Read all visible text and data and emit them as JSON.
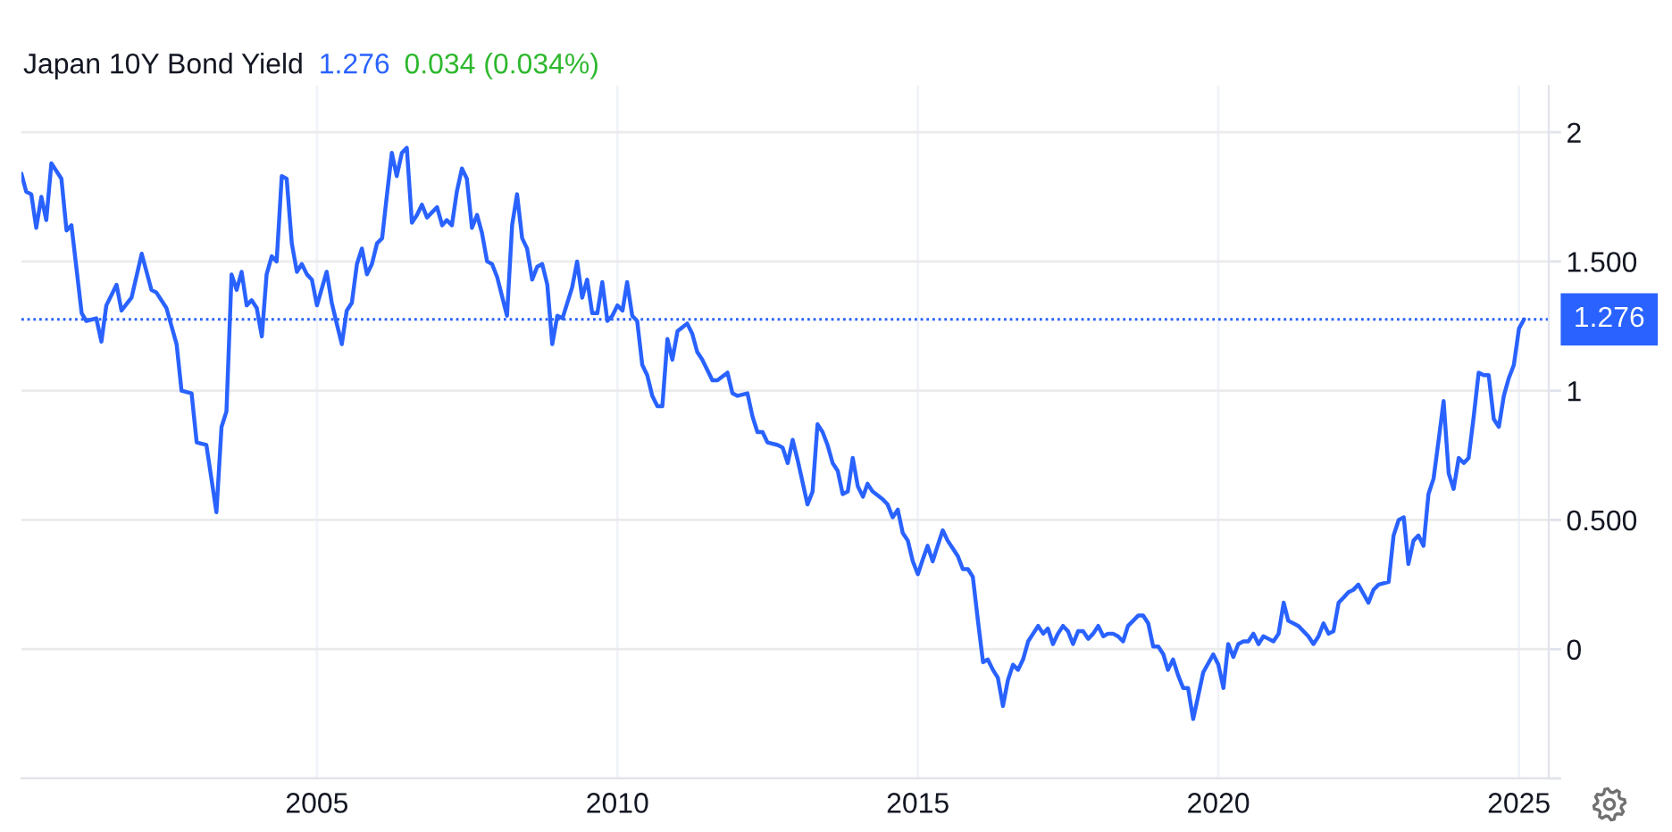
{
  "chart_data": {
    "type": "line",
    "title": "Japan 10Y Bond Yield",
    "annotations": [
      "1.276",
      "0.034 (0.034%)"
    ],
    "x": [
      "2000-02",
      "2000-03",
      "2000-04",
      "2000-05",
      "2000-06",
      "2000-07",
      "2000-08",
      "2000-10",
      "2000-11",
      "2000-12",
      "2001-02",
      "2001-03",
      "2001-05",
      "2001-06",
      "2001-07",
      "2001-09",
      "2001-10",
      "2001-12",
      "2002-02",
      "2002-04",
      "2002-05",
      "2002-07",
      "2002-09",
      "2002-10",
      "2002-12",
      "2003-01",
      "2003-03",
      "2003-05",
      "2003-06",
      "2003-07",
      "2003-08",
      "2003-09",
      "2003-10",
      "2003-11",
      "2003-12",
      "2004-01",
      "2004-02",
      "2004-03",
      "2004-04",
      "2004-05",
      "2004-06",
      "2004-07",
      "2004-08",
      "2004-09",
      "2004-10",
      "2004-11",
      "2004-12",
      "2005-01",
      "2005-03",
      "2005-04",
      "2005-05",
      "2005-06",
      "2005-07",
      "2005-08",
      "2005-09",
      "2005-10",
      "2005-11",
      "2005-12",
      "2006-01",
      "2006-02",
      "2006-03",
      "2006-04",
      "2006-05",
      "2006-06",
      "2006-07",
      "2006-08",
      "2006-09",
      "2006-10",
      "2006-11",
      "2006-12",
      "2007-01",
      "2007-02",
      "2007-03",
      "2007-04",
      "2007-05",
      "2007-06",
      "2007-07",
      "2007-08",
      "2007-09",
      "2007-10",
      "2007-11",
      "2007-12",
      "2008-01",
      "2008-03",
      "2008-04",
      "2008-05",
      "2008-06",
      "2008-07",
      "2008-08",
      "2008-09",
      "2008-10",
      "2008-11",
      "2008-12",
      "2009-01",
      "2009-02",
      "2009-04",
      "2009-05",
      "2009-06",
      "2009-07",
      "2009-08",
      "2009-09",
      "2009-10",
      "2009-11",
      "2009-12",
      "2010-01",
      "2010-02",
      "2010-03",
      "2010-04",
      "2010-05",
      "2010-06",
      "2010-07",
      "2010-08",
      "2010-09",
      "2010-10",
      "2010-11",
      "2010-12",
      "2011-01",
      "2011-03",
      "2011-04",
      "2011-05",
      "2011-06",
      "2011-08",
      "2011-09",
      "2011-11",
      "2011-12",
      "2012-01",
      "2012-03",
      "2012-04",
      "2012-05",
      "2012-06",
      "2012-07",
      "2012-09",
      "2012-10",
      "2012-11",
      "2012-12",
      "2013-01",
      "2013-03",
      "2013-04",
      "2013-05",
      "2013-06",
      "2013-07",
      "2013-08",
      "2013-09",
      "2013-10",
      "2013-11",
      "2013-12",
      "2014-01",
      "2014-02",
      "2014-03",
      "2014-04",
      "2014-06",
      "2014-07",
      "2014-08",
      "2014-09",
      "2014-10",
      "2014-11",
      "2014-12",
      "2015-01",
      "2015-02",
      "2015-03",
      "2015-04",
      "2015-05",
      "2015-06",
      "2015-07",
      "2015-08",
      "2015-09",
      "2015-10",
      "2015-11",
      "2015-12",
      "2016-01",
      "2016-02",
      "2016-03",
      "2016-04",
      "2016-05",
      "2016-06",
      "2016-07",
      "2016-08",
      "2016-09",
      "2016-10",
      "2016-11",
      "2016-12",
      "2017-01",
      "2017-02",
      "2017-03",
      "2017-04",
      "2017-05",
      "2017-06",
      "2017-07",
      "2017-08",
      "2017-09",
      "2017-10",
      "2017-11",
      "2017-12",
      "2018-01",
      "2018-02",
      "2018-03",
      "2018-04",
      "2018-05",
      "2018-06",
      "2018-07",
      "2018-09",
      "2018-10",
      "2018-11",
      "2018-12",
      "2019-01",
      "2019-02",
      "2019-03",
      "2019-04",
      "2019-05",
      "2019-06",
      "2019-07",
      "2019-08",
      "2019-09",
      "2019-10",
      "2019-12",
      "2020-01",
      "2020-02",
      "2020-03",
      "2020-04",
      "2020-05",
      "2020-06",
      "2020-07",
      "2020-08",
      "2020-09",
      "2020-10",
      "2020-11",
      "2020-12",
      "2021-01",
      "2021-02",
      "2021-03",
      "2021-04",
      "2021-05",
      "2021-07",
      "2021-08",
      "2021-09",
      "2021-10",
      "2021-11",
      "2021-12",
      "2022-01",
      "2022-02",
      "2022-03",
      "2022-04",
      "2022-05",
      "2022-07",
      "2022-08",
      "2022-09",
      "2022-11",
      "2022-12",
      "2023-01",
      "2023-02",
      "2023-03",
      "2023-04",
      "2023-05",
      "2023-06",
      "2023-07",
      "2023-08",
      "2023-09",
      "2023-10",
      "2023-11",
      "2023-12",
      "2024-01",
      "2024-02",
      "2024-03",
      "2024-04",
      "2024-05",
      "2024-06",
      "2024-07",
      "2024-08",
      "2024-09",
      "2024-10",
      "2024-11",
      "2024-12",
      "2025-01",
      "2025-02"
    ],
    "series": [
      {
        "color": "#2962ff",
        "values": [
          1.84,
          1.77,
          1.76,
          1.63,
          1.75,
          1.66,
          1.88,
          1.82,
          1.62,
          1.64,
          1.3,
          1.27,
          1.28,
          1.19,
          1.33,
          1.41,
          1.31,
          1.36,
          1.53,
          1.39,
          1.38,
          1.32,
          1.18,
          1.0,
          0.99,
          0.8,
          0.79,
          0.53,
          0.86,
          0.92,
          1.45,
          1.39,
          1.46,
          1.33,
          1.35,
          1.32,
          1.21,
          1.45,
          1.52,
          1.5,
          1.83,
          1.82,
          1.57,
          1.46,
          1.49,
          1.45,
          1.43,
          1.33,
          1.46,
          1.34,
          1.26,
          1.18,
          1.31,
          1.34,
          1.49,
          1.55,
          1.45,
          1.49,
          1.57,
          1.59,
          1.75,
          1.92,
          1.83,
          1.92,
          1.94,
          1.65,
          1.68,
          1.72,
          1.67,
          1.69,
          1.71,
          1.64,
          1.66,
          1.64,
          1.77,
          1.86,
          1.82,
          1.63,
          1.68,
          1.61,
          1.5,
          1.49,
          1.44,
          1.29,
          1.64,
          1.76,
          1.59,
          1.55,
          1.43,
          1.48,
          1.49,
          1.41,
          1.18,
          1.29,
          1.28,
          1.4,
          1.5,
          1.36,
          1.43,
          1.3,
          1.3,
          1.42,
          1.27,
          1.29,
          1.33,
          1.31,
          1.42,
          1.29,
          1.27,
          1.1,
          1.06,
          0.98,
          0.94,
          0.94,
          1.2,
          1.12,
          1.23,
          1.26,
          1.22,
          1.15,
          1.12,
          1.04,
          1.04,
          1.07,
          0.99,
          0.98,
          0.99,
          0.9,
          0.84,
          0.84,
          0.8,
          0.79,
          0.78,
          0.72,
          0.81,
          0.73,
          0.56,
          0.61,
          0.87,
          0.84,
          0.79,
          0.72,
          0.69,
          0.6,
          0.61,
          0.74,
          0.63,
          0.59,
          0.64,
          0.61,
          0.58,
          0.56,
          0.51,
          0.54,
          0.45,
          0.42,
          0.34,
          0.29,
          0.35,
          0.4,
          0.34,
          0.4,
          0.46,
          0.42,
          0.39,
          0.36,
          0.31,
          0.31,
          0.28,
          0.11,
          -0.05,
          -0.04,
          -0.08,
          -0.11,
          -0.22,
          -0.12,
          -0.06,
          -0.08,
          -0.04,
          0.03,
          0.06,
          0.09,
          0.06,
          0.08,
          0.02,
          0.06,
          0.09,
          0.07,
          0.02,
          0.07,
          0.07,
          0.04,
          0.06,
          0.09,
          0.05,
          0.06,
          0.06,
          0.05,
          0.03,
          0.09,
          0.13,
          0.13,
          0.1,
          0.01,
          0.01,
          -0.02,
          -0.08,
          -0.04,
          -0.1,
          -0.15,
          -0.15,
          -0.27,
          -0.18,
          -0.09,
          -0.02,
          -0.06,
          -0.15,
          0.02,
          -0.03,
          0.02,
          0.03,
          0.03,
          0.06,
          0.02,
          0.05,
          0.04,
          0.03,
          0.06,
          0.18,
          0.11,
          0.1,
          0.09,
          0.05,
          0.02,
          0.05,
          0.1,
          0.06,
          0.07,
          0.18,
          0.2,
          0.22,
          0.23,
          0.25,
          0.18,
          0.23,
          0.25,
          0.26,
          0.44,
          0.5,
          0.51,
          0.33,
          0.42,
          0.44,
          0.4,
          0.6,
          0.66,
          0.81,
          0.96,
          0.68,
          0.62,
          0.74,
          0.72,
          0.74,
          0.9,
          1.07,
          1.06,
          1.06,
          0.89,
          0.86,
          0.98,
          1.05,
          1.1,
          1.24,
          1.276
        ]
      }
    ],
    "xlim": [
      "2000-02-01",
      "2025-07-01"
    ],
    "xticks": [
      "2005",
      "2010",
      "2015",
      "2020",
      "2025"
    ],
    "ylim": [
      -0.5,
      2.18
    ],
    "yticks": [
      {
        "value": -0.5,
        "label": null
      },
      0,
      {
        "value": 0.5,
        "label": "0.500"
      },
      1,
      {
        "value": 1.5,
        "label": "1.500"
      },
      2
    ],
    "ref_lines": [
      {
        "axis": "y",
        "value": 1.276,
        "label": "1.276",
        "color": "#2962ff",
        "line_style": "dotted"
      }
    ],
    "grid": true
  }
}
